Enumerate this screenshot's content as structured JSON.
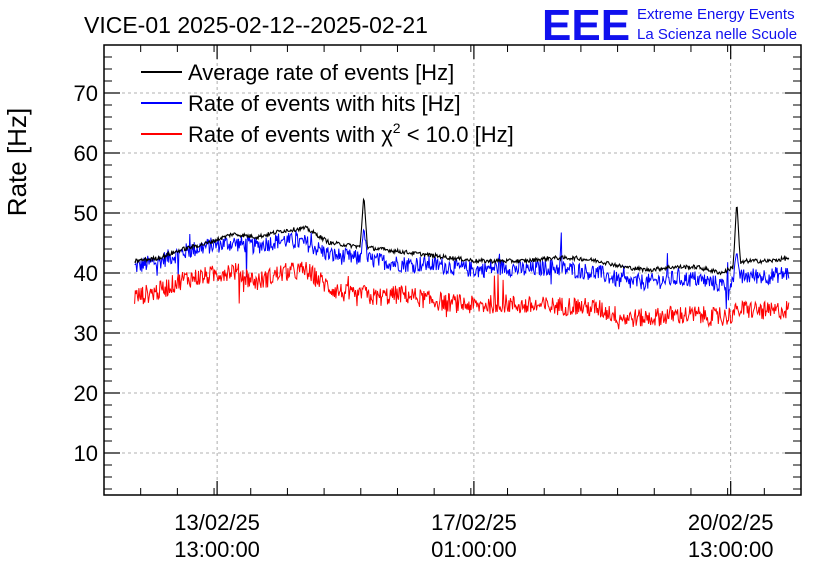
{
  "chart_data": {
    "type": "line",
    "title": "VICE-01 2025-02-12--2025-02-21",
    "ylabel": "Rate [Hz]",
    "xlabel": "",
    "ylim": [
      3,
      78
    ],
    "xlim": [
      "2025-02-12 00:00",
      "2025-02-21 12:00"
    ],
    "grid": true,
    "legend_position": "top-left",
    "y_ticks": [
      10,
      20,
      30,
      40,
      50,
      60,
      70
    ],
    "x_ticks": [
      {
        "t": "2025-02-13 13:00",
        "line1": "13/02/25",
        "line2": "13:00:00"
      },
      {
        "t": "2025-02-17 01:00",
        "line1": "17/02/25",
        "line2": "01:00:00"
      },
      {
        "t": "2025-02-20 13:00",
        "line1": "20/02/25",
        "line2": "13:00:00"
      }
    ],
    "x": [
      "2025-02-12 10:00",
      "2025-02-12 18:00",
      "2025-02-13 02:00",
      "2025-02-13 10:00",
      "2025-02-13 18:00",
      "2025-02-14 02:00",
      "2025-02-14 10:00",
      "2025-02-14 18:00",
      "2025-02-15 02:00",
      "2025-02-15 10:00",
      "2025-02-15 18:00",
      "2025-02-16 02:00",
      "2025-02-16 10:00",
      "2025-02-16 18:00",
      "2025-02-17 02:00",
      "2025-02-17 10:00",
      "2025-02-17 18:00",
      "2025-02-18 02:00",
      "2025-02-18 10:00",
      "2025-02-18 18:00",
      "2025-02-19 02:00",
      "2025-02-19 10:00",
      "2025-02-19 18:00",
      "2025-02-20 02:00",
      "2025-02-20 10:00",
      "2025-02-20 18:00",
      "2025-02-21 02:00",
      "2025-02-21 08:00"
    ],
    "series": [
      {
        "name": "Average rate of events [Hz]",
        "color": "#000000",
        "values": [
          42,
          42.5,
          44,
          45,
          46.5,
          46,
          47,
          47.5,
          45,
          44.5,
          44,
          43.5,
          43,
          42.5,
          42,
          42,
          42,
          42.5,
          42.5,
          42,
          41,
          40.5,
          41,
          41,
          40,
          42,
          42,
          42.5
        ]
      },
      {
        "name": "Rate of events with hits [Hz]",
        "color": "#0000ff",
        "values": [
          41,
          42,
          43.5,
          44.5,
          45,
          44.5,
          45.5,
          45,
          43,
          42.5,
          42,
          41.5,
          41.5,
          41,
          40.5,
          41,
          40.5,
          41,
          40.5,
          40,
          38.5,
          38.5,
          39,
          39,
          38,
          39.5,
          39.5,
          40
        ]
      },
      {
        "name": "Rate of events with χ² < 10.0 [Hz]",
        "color": "#ff0000",
        "values": [
          36,
          37,
          39,
          39.5,
          40.5,
          38.5,
          40,
          40.5,
          37.5,
          36,
          36,
          36.5,
          35.5,
          35,
          34.5,
          35,
          34.5,
          34.5,
          34.5,
          34,
          32.5,
          32.5,
          33,
          33,
          32.5,
          34,
          33.5,
          34
        ]
      }
    ],
    "spikes": [
      {
        "t": "2025-02-15 13:00",
        "black": 53,
        "blue": 47.5,
        "red": 38
      },
      {
        "t": "2025-02-20 15:00",
        "black": 52,
        "blue": 43.5,
        "red": 34
      }
    ]
  },
  "legend": {
    "avg": "Average rate of events [Hz]",
    "hits": "Rate of events with hits [Hz]",
    "chi_prefix": "Rate of events with ",
    "chi_symbol": "χ",
    "chi_sup": "2",
    "chi_suffix": " < 10.0 [Hz]"
  },
  "logo": {
    "mark": "EEE",
    "line1": "Extreme Energy Events",
    "line2": "La Scienza nelle Scuole",
    "color": "#1010ee"
  }
}
